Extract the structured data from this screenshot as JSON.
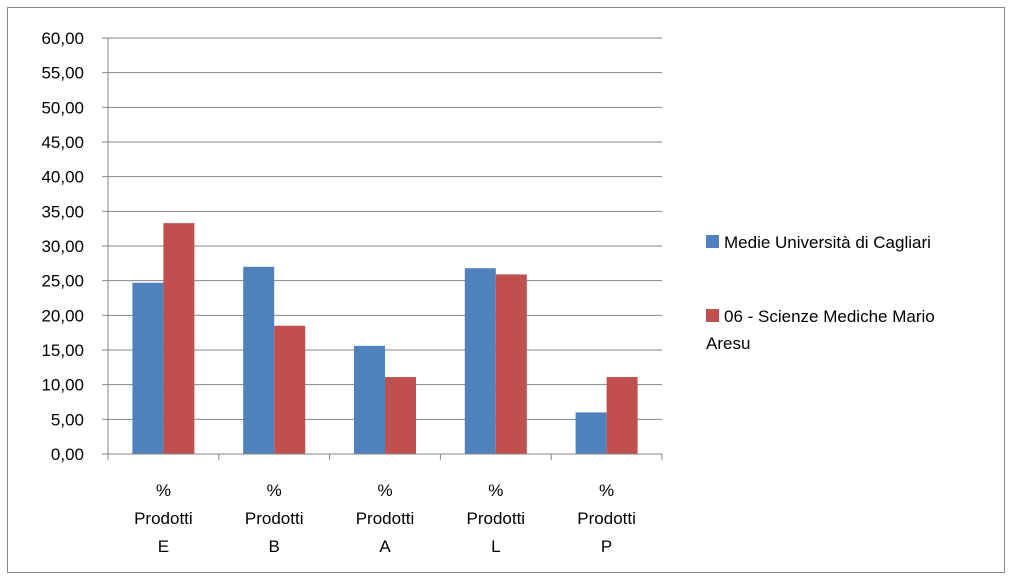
{
  "chart_data": {
    "type": "bar",
    "title": "",
    "xlabel": "",
    "ylabel": "",
    "ylim": [
      0,
      60
    ],
    "y_ticks": [
      "0,00",
      "5,00",
      "10,00",
      "15,00",
      "20,00",
      "25,00",
      "30,00",
      "35,00",
      "40,00",
      "45,00",
      "50,00",
      "55,00",
      "60,00"
    ],
    "categories": [
      [
        "%",
        "Prodotti",
        "E"
      ],
      [
        "%",
        "Prodotti",
        "B"
      ],
      [
        "%",
        "Prodotti",
        "A"
      ],
      [
        "%",
        "Prodotti",
        "L"
      ],
      [
        "%",
        "Prodotti",
        "P"
      ]
    ],
    "series": [
      {
        "name": "Medie Università di Cagliari",
        "color": "#4F81BD",
        "values": [
          24.7,
          27.0,
          15.6,
          26.8,
          6.0
        ]
      },
      {
        "name": "06 - Scienze Mediche Mario Aresu",
        "name_lines": [
          "06 - Scienze Mediche Mario",
          "Aresu"
        ],
        "color": "#C0504D",
        "values": [
          33.3,
          18.5,
          11.1,
          25.9,
          11.1
        ]
      }
    ],
    "grid": true,
    "legend_position": "right"
  }
}
